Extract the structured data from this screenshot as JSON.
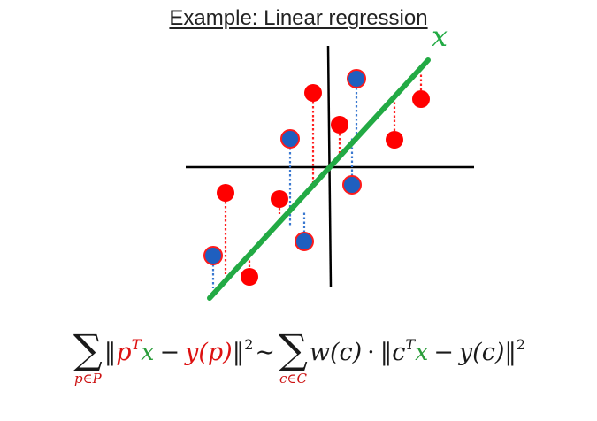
{
  "title": "Example: Linear regression",
  "line_label": "x",
  "colors": {
    "red_point": "#ff0000",
    "blue_point": "#1f5fbf",
    "line": "#22aa44",
    "axis": "#000000",
    "red_residual": "#ff2020",
    "blue_residual": "#3a78d0"
  },
  "formula": {
    "left_sum_index": "p∈P",
    "left_norm_open": "‖",
    "left_vec": "p",
    "left_transpose": "T",
    "left_x": "x",
    "minus": "−",
    "left_y": "y(p)",
    "left_norm_close": "‖",
    "square": "2",
    "tilde": "∼",
    "right_sum_index": "c∈C",
    "weight": "w(c)",
    "dot": "·",
    "right_norm_open": "‖",
    "right_vec": "c",
    "right_transpose": "T",
    "right_x": "x",
    "right_minus": "−",
    "right_y": "y(c)",
    "right_norm_close": "‖",
    "right_square": "2"
  }
}
